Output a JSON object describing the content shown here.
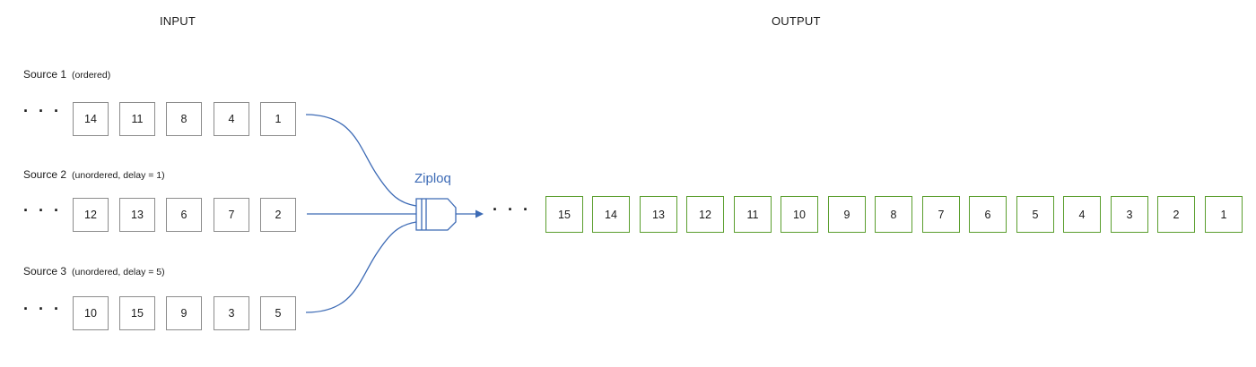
{
  "headings": {
    "input": "INPUT",
    "output": "OUTPUT"
  },
  "ellipsis": "· · ·",
  "sources": [
    {
      "title": "Source 1",
      "note": "(ordered)",
      "items": [
        "14",
        "11",
        "8",
        "4",
        "1"
      ]
    },
    {
      "title": "Source 2",
      "note": "(unordered, delay = 1)",
      "items": [
        "12",
        "13",
        "6",
        "7",
        "2"
      ]
    },
    {
      "title": "Source 3",
      "note": "(unordered, delay = 5)",
      "items": [
        "10",
        "15",
        "9",
        "3",
        "5"
      ]
    }
  ],
  "merger": {
    "label": "Ziploq",
    "icon": "ziploq-merge-icon",
    "color": "#3c6ab5"
  },
  "output": {
    "items": [
      "15",
      "14",
      "13",
      "12",
      "11",
      "10",
      "9",
      "8",
      "7",
      "6",
      "5",
      "4",
      "3",
      "2",
      "1"
    ],
    "color": "#5a9e2d"
  }
}
